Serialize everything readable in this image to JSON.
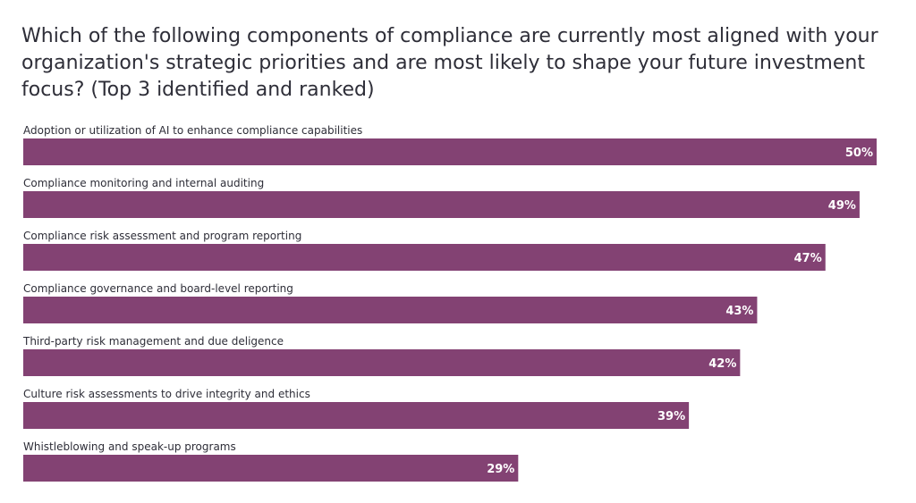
{
  "chart_data": {
    "type": "bar",
    "orientation": "horizontal",
    "title": "Which of the following components of compliance are currently most aligned with your organization's strategic priorities and are most likely to shape your future investment focus? (Top 3 identified and ranked)",
    "categories": [
      "Adoption or utilization of AI to enhance compliance capabilities",
      "Compliance monitoring and internal auditing",
      "Compliance risk assessment and program reporting",
      "Compliance governance and board-level reporting",
      "Third-party risk management and due deligence",
      "Culture risk assessments to drive integrity and ethics",
      "Whistleblowing and speak-up programs"
    ],
    "values": [
      50,
      49,
      47,
      43,
      42,
      39,
      29
    ],
    "value_labels": [
      "50%",
      "49%",
      "47%",
      "43%",
      "42%",
      "39%",
      "29%"
    ],
    "value_unit": "%",
    "xlim": [
      0,
      50
    ],
    "grid": false,
    "legend": "none",
    "colors": {
      "bar": "#834273",
      "bar_label": "#ffffff",
      "text": "#2e2e38"
    }
  }
}
